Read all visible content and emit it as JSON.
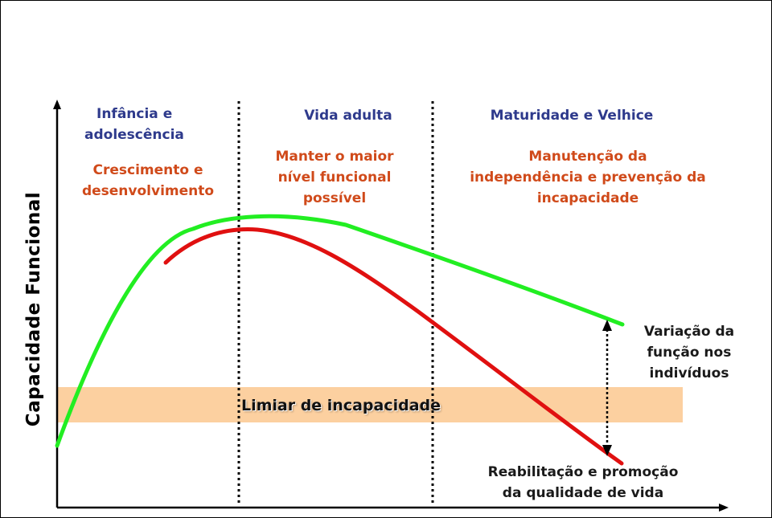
{
  "y_axis_label": "Capacidade Funcional",
  "stages": {
    "childhood": {
      "line1": "Infância e",
      "line2": "adolescência"
    },
    "adult": "Vida adulta",
    "old_age": "Maturidade e Velhice"
  },
  "goals": {
    "childhood": {
      "line1": "Crescimento e",
      "line2": "desenvolvimento"
    },
    "adult": {
      "line1": "Manter o maior",
      "line2": "nível funcional",
      "line3": "possível"
    },
    "old_age": {
      "line1": "Manutenção da",
      "line2": "independência e prevenção da",
      "line3": "incapacidade"
    }
  },
  "threshold_label": "Limiar de incapacidade",
  "variation_note": {
    "line1": "Variação da",
    "line2": "função nos",
    "line3": "indivíduos"
  },
  "rehab_note": {
    "line1": "Reabilitação e promoção",
    "line2": "da qualidade de vida"
  },
  "colors": {
    "healthy_curve": "#22ee22",
    "declining_curve": "#e01010",
    "threshold_band": "#fcd0a0",
    "stage_text": "#2e3a8c",
    "goal_text": "#d04a1a"
  }
}
